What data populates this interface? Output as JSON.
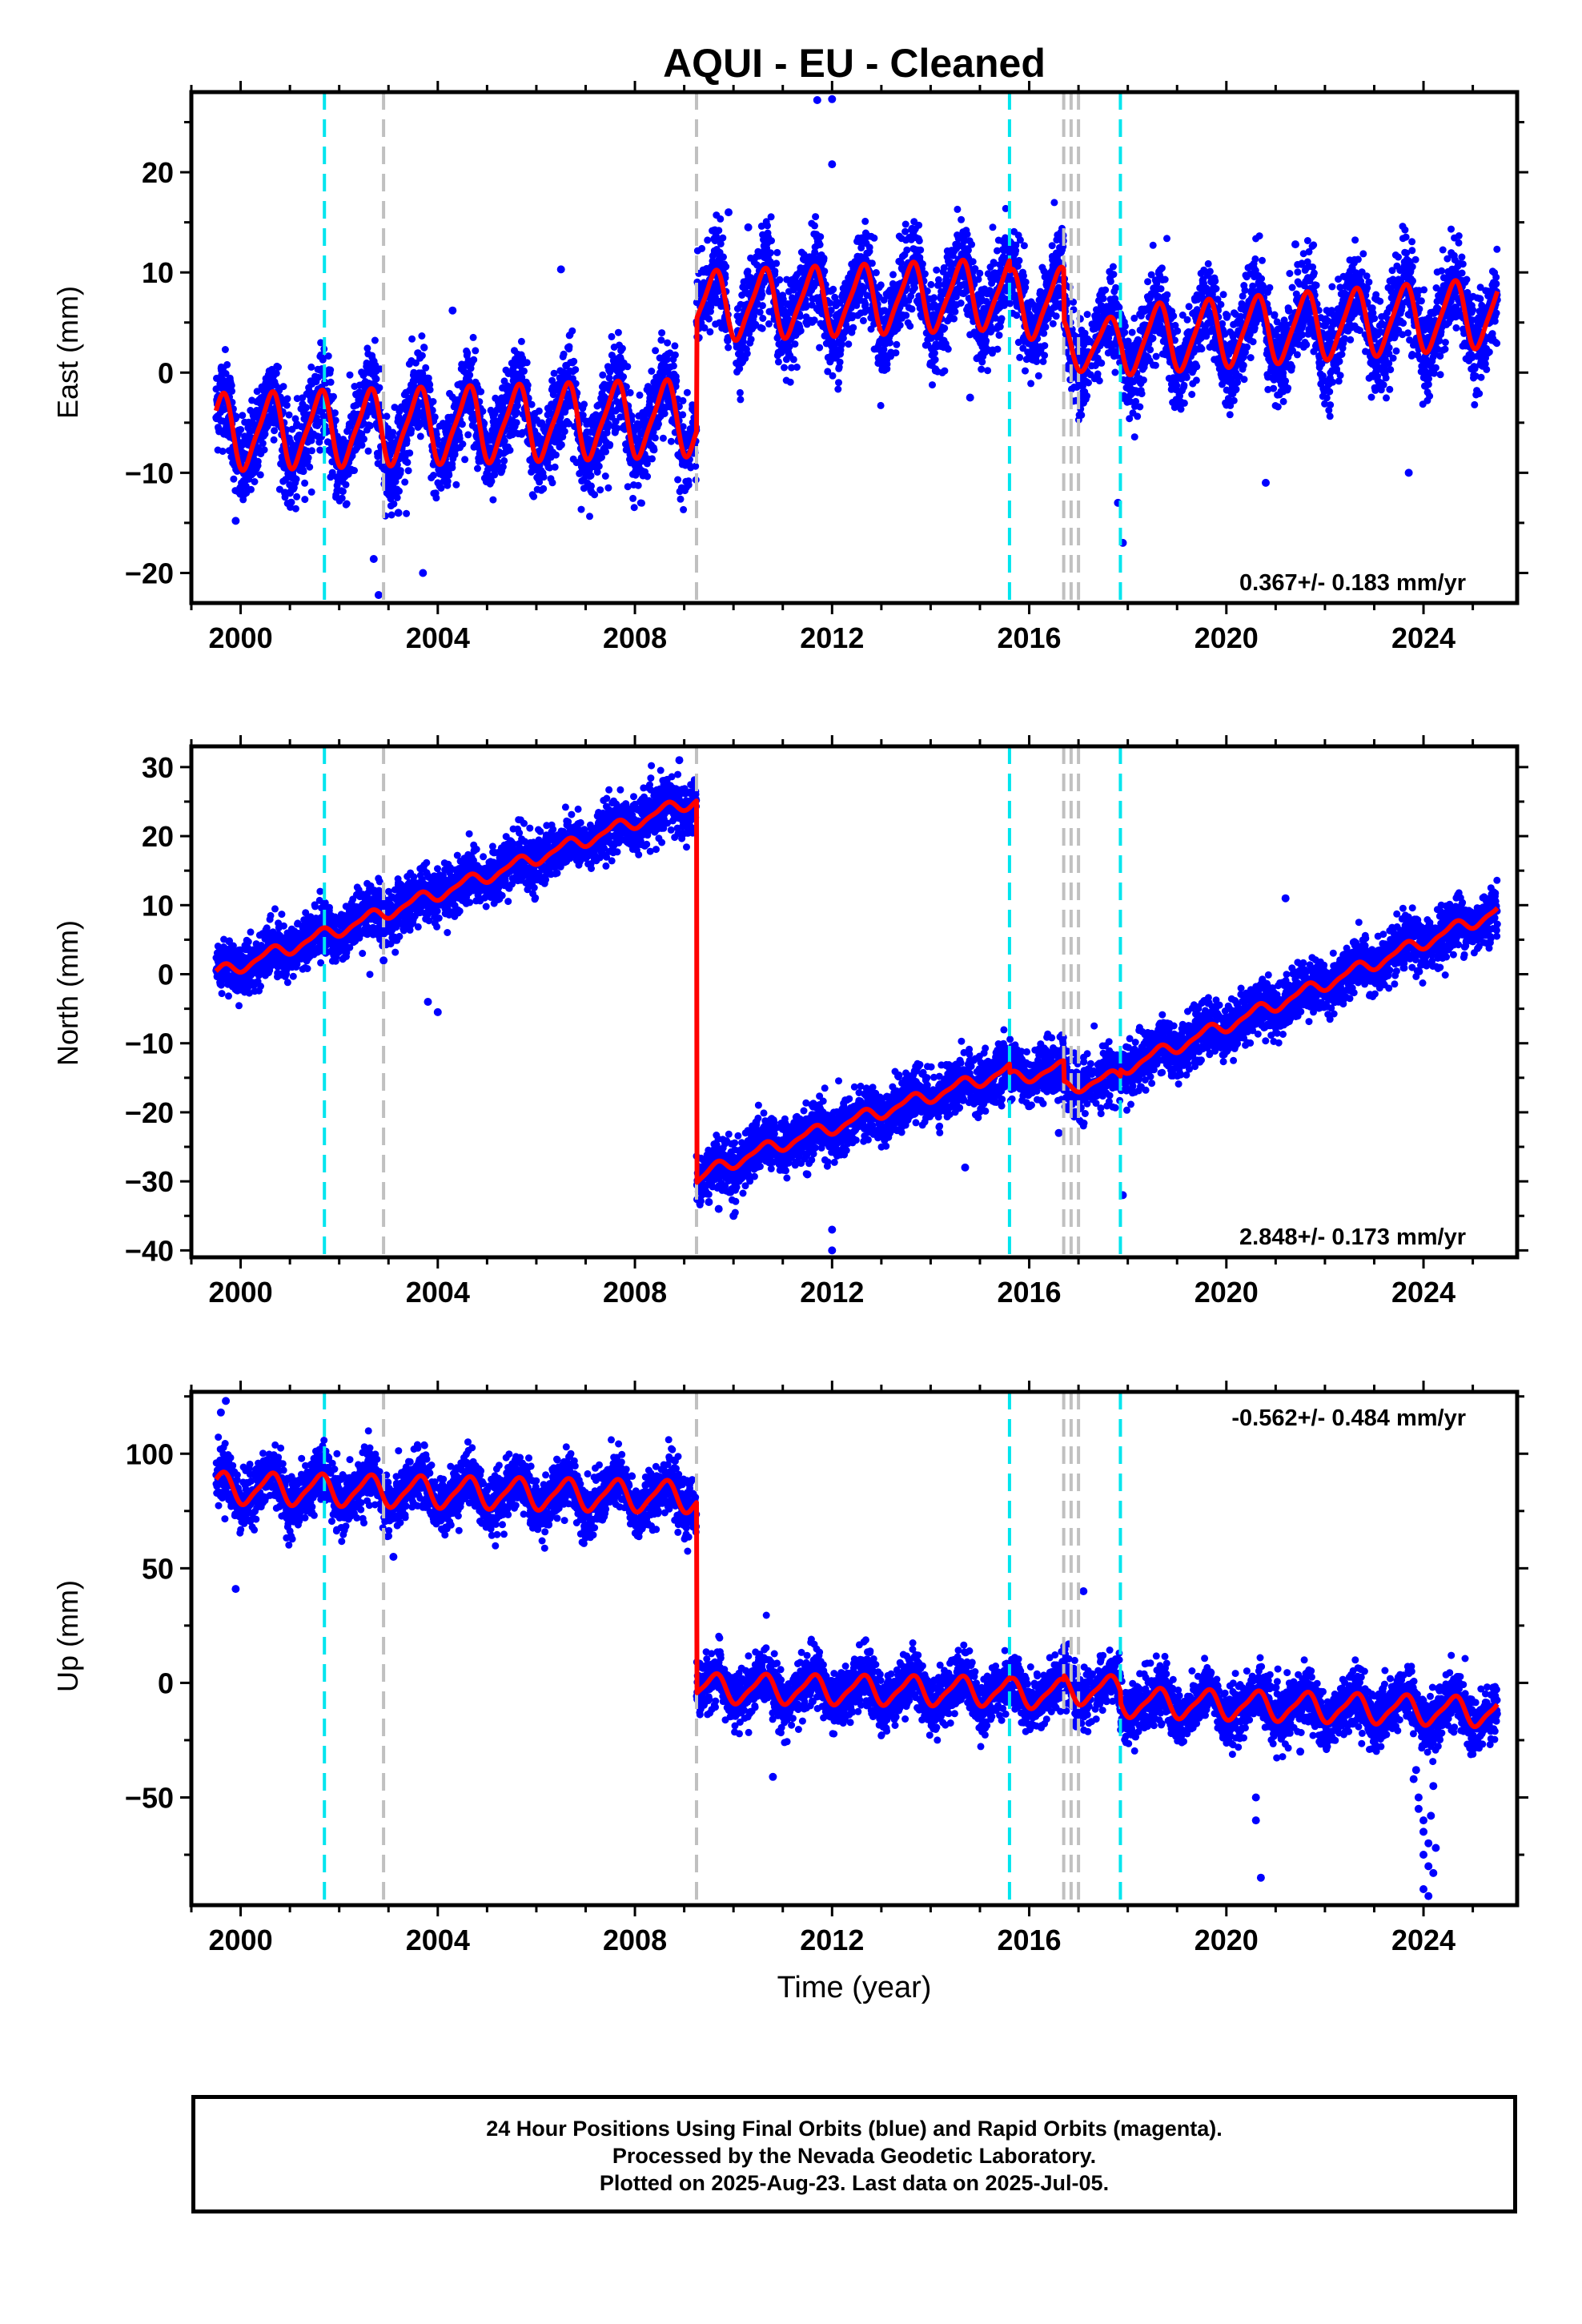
{
  "title": "AQUI  - EU - Cleaned",
  "colors": {
    "final_orbits": "#0000ff",
    "model_fit": "#ff0000",
    "offset_equipment": "#00e5ee",
    "offset_other": "#c0c0c0",
    "frame": "#000000"
  },
  "chart_data": [
    {
      "type": "scatter",
      "name": "east",
      "ylabel": "East (mm)",
      "xlabel": "",
      "xlim": [
        1999.0,
        2025.9
      ],
      "ylim": [
        -23,
        28
      ],
      "xticks": [
        2000,
        2004,
        2008,
        2012,
        2016,
        2020,
        2024
      ],
      "yticks": [
        -20,
        -10,
        0,
        10,
        20
      ],
      "velocity_label": "0.367+/- 0.183 mm/yr",
      "velocity_label_position": "bottom-right",
      "fit_segments": [
        {
          "t0": 1999.5,
          "t1": 2009.25,
          "offset": -4.5,
          "slope": 0.15,
          "amp": 3.6,
          "amp2": 0.8
        },
        {
          "t0": 2009.25,
          "t1": 2015.6,
          "offset": 6.6,
          "slope": 0.2,
          "amp": 3.3,
          "amp2": 0.7
        },
        {
          "t0": 2015.6,
          "t1": 2016.7,
          "offset": 5.5,
          "slope": 0.2,
          "amp": 3.3,
          "amp2": 0.7
        },
        {
          "t0": 2016.7,
          "t1": 2017.85,
          "offset": 1.2,
          "slope": 0.2,
          "amp": 2.5,
          "amp2": 0.5
        },
        {
          "t0": 2017.85,
          "t1": 2025.5,
          "offset": 0.0,
          "slope": 0.37,
          "amp": 3.3,
          "amp2": 0.6
        }
      ],
      "scatter_noise_mm": 2.2,
      "outliers": [
        [
          2011.7,
          27.2
        ],
        [
          2012.0,
          27.3
        ],
        [
          2012.0,
          20.8
        ],
        [
          2002.8,
          -22.2
        ],
        [
          2002.7,
          -18.6
        ],
        [
          2003.7,
          -20.0
        ],
        [
          2017.9,
          -17.0
        ],
        [
          2017.8,
          -13.0
        ],
        [
          2009.9,
          16.0
        ],
        [
          2021.4,
          12.8
        ],
        [
          2006.5,
          10.3
        ],
        [
          2004.3,
          6.2
        ],
        [
          2000.9,
          -12.0
        ],
        [
          2023.7,
          -10.0
        ],
        [
          2020.8,
          -11.0
        ],
        [
          1999.9,
          -14.8
        ],
        [
          2001.0,
          -12.0
        ],
        [
          2003.2,
          -14.0
        ],
        [
          2014.8,
          -2.5
        ],
        [
          2010.3,
          14.5
        ]
      ]
    },
    {
      "type": "scatter",
      "name": "north",
      "ylabel": "North (mm)",
      "xlabel": "",
      "xlim": [
        1999.0,
        2025.9
      ],
      "ylim": [
        -41,
        33
      ],
      "xticks": [
        2000,
        2004,
        2008,
        2012,
        2016,
        2020,
        2024
      ],
      "yticks": [
        -40,
        -30,
        -20,
        -10,
        0,
        10,
        20,
        30
      ],
      "velocity_label": "2.848+/- 0.173 mm/yr",
      "velocity_label_position": "bottom-right",
      "fit_segments": [
        {
          "t0": 1999.5,
          "t1": 2009.25,
          "offset": 0.0,
          "slope": 2.6,
          "amp": 0.9,
          "amp2": 0.3,
          "t_ref": 1999.5
        },
        {
          "t0": 2009.25,
          "t1": 2015.6,
          "offset": -28.5,
          "slope": 2.3,
          "amp": 0.9,
          "amp2": 0.3,
          "t_ref": 2009.25,
          "post_seismic": -1.5
        },
        {
          "t0": 2015.6,
          "t1": 2016.7,
          "offset": -15.2,
          "slope": 1.5,
          "amp": 0.9,
          "amp2": 0.3,
          "t_ref": 2015.6
        },
        {
          "t0": 2016.7,
          "t1": 2017.85,
          "offset": -16.5,
          "slope": 1.5,
          "amp": 0.9,
          "amp2": 0.3,
          "t_ref": 2016.7
        },
        {
          "t0": 2017.85,
          "t1": 2025.5,
          "offset": -13.8,
          "slope": 3.0,
          "amp": 0.9,
          "amp2": 0.3,
          "t_ref": 2017.85
        }
      ],
      "scatter_noise_mm": 1.9,
      "outliers": [
        [
          2012.0,
          -37.0
        ],
        [
          2012.0,
          -40.0
        ],
        [
          2010.0,
          -35.0
        ],
        [
          2009.7,
          -34.0
        ],
        [
          2014.7,
          -28.0
        ],
        [
          2004.0,
          -5.5
        ],
        [
          2003.8,
          -4.0
        ],
        [
          2017.9,
          -32.0
        ],
        [
          2021.2,
          11.0
        ],
        [
          2008.9,
          31.0
        ],
        [
          2002.9,
          2.0
        ],
        [
          2011.5,
          -29.0
        ],
        [
          2009.5,
          -33.0
        ],
        [
          2016.6,
          -23.0
        ],
        [
          2023.0,
          1.0
        ]
      ]
    },
    {
      "type": "scatter",
      "name": "up",
      "ylabel": "Up (mm)",
      "xlabel": "Time (year)",
      "xlim": [
        1999.0,
        2025.9
      ],
      "ylim": [
        -97,
        127
      ],
      "xticks": [
        2000,
        2004,
        2008,
        2012,
        2016,
        2020,
        2024
      ],
      "yticks": [
        -50,
        0,
        50,
        100
      ],
      "velocity_label": "-0.562+/- 0.484 mm/yr",
      "velocity_label_position": "top-right",
      "fit_segments": [
        {
          "t0": 1999.5,
          "t1": 2009.25,
          "offset": 85.0,
          "slope": -0.4,
          "amp": 6.5,
          "amp2": 1.5,
          "t_ref": 1999.5
        },
        {
          "t0": 2009.25,
          "t1": 2015.6,
          "offset": -2.5,
          "slope": -0.2,
          "amp": 6.0,
          "amp2": 1.5,
          "t_ref": 2009.25
        },
        {
          "t0": 2015.6,
          "t1": 2016.7,
          "offset": -4.5,
          "slope": -0.4,
          "amp": 6.0,
          "amp2": 1.5,
          "t_ref": 2015.6
        },
        {
          "t0": 2016.7,
          "t1": 2017.85,
          "offset": -3.0,
          "slope": -0.4,
          "amp": 6.0,
          "amp2": 1.5,
          "t_ref": 2016.7
        },
        {
          "t0": 2017.85,
          "t1": 2025.5,
          "offset": -8.5,
          "slope": -0.56,
          "amp": 6.0,
          "amp2": 1.5,
          "t_ref": 2017.85
        }
      ],
      "scatter_noise_mm": 6.0,
      "outliers": [
        [
          1999.7,
          123.0
        ],
        [
          1999.6,
          118.0
        ],
        [
          1999.9,
          41.0
        ],
        [
          2017.1,
          40.0
        ],
        [
          2010.8,
          -41.0
        ],
        [
          2020.6,
          -50.0
        ],
        [
          2020.6,
          -60.0
        ],
        [
          2020.7,
          -85.0
        ],
        [
          2023.8,
          -42.0
        ],
        [
          2023.9,
          -50.0
        ],
        [
          2023.9,
          -55.0
        ],
        [
          2024.0,
          -60.0
        ],
        [
          2024.0,
          -65.0
        ],
        [
          2024.1,
          -70.0
        ],
        [
          2024.0,
          -75.0
        ],
        [
          2024.1,
          -80.0
        ],
        [
          2024.2,
          -83.0
        ],
        [
          2024.0,
          -90.0
        ],
        [
          2024.1,
          -93.0
        ],
        [
          2024.2,
          -45.0
        ],
        [
          2023.85,
          -38.0
        ],
        [
          2024.15,
          -58.0
        ],
        [
          2024.25,
          -72.0
        ],
        [
          2021.5,
          -30.0
        ],
        [
          2003.1,
          55.0
        ]
      ]
    }
  ],
  "offset_lines": {
    "equipment": [
      2001.7,
      2015.6,
      2017.85
    ],
    "other": [
      2002.9,
      2009.25,
      2016.7,
      2016.85,
      2017.0
    ]
  },
  "footer": {
    "line1": "24 Hour Positions Using Final Orbits (blue) and Rapid Orbits (magenta).",
    "line2": "Processed by the Nevada Geodetic Laboratory.",
    "line3": "Plotted on 2025-Aug-23. Last data on 2025-Jul-05."
  }
}
